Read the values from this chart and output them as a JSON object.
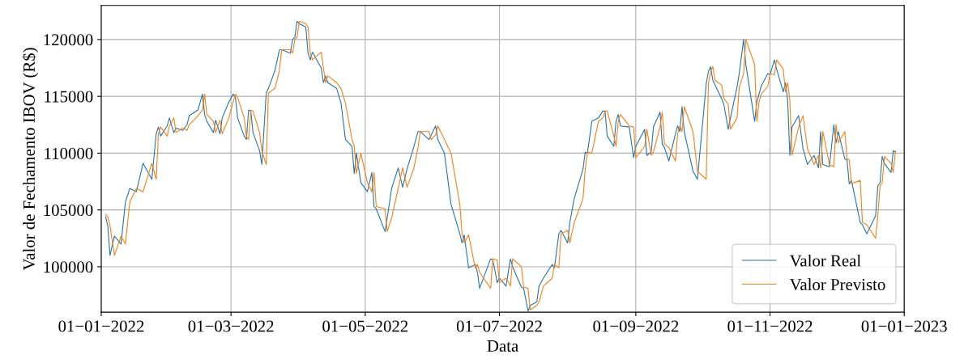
{
  "chart_data": {
    "type": "line",
    "xlabel": "Data",
    "ylabel": "Valor de Fechamento IBOV (R$)",
    "x": [
      "2022-01-03",
      "2022-01-04",
      "2022-01-05",
      "2022-01-07",
      "2022-01-10",
      "2022-01-12",
      "2022-01-14",
      "2022-01-17",
      "2022-01-20",
      "2022-01-24",
      "2022-01-26",
      "2022-01-27",
      "2022-01-28",
      "2022-01-31",
      "2022-02-01",
      "2022-02-03",
      "2022-02-04",
      "2022-02-07",
      "2022-02-09",
      "2022-02-10",
      "2022-02-14",
      "2022-02-16",
      "2022-02-17",
      "2022-02-18",
      "2022-02-21",
      "2022-02-22",
      "2022-02-24",
      "2022-02-25",
      "2022-02-28",
      "2022-03-02",
      "2022-03-03",
      "2022-03-04",
      "2022-03-07",
      "2022-03-08",
      "2022-03-09",
      "2022-03-10",
      "2022-03-11",
      "2022-03-14",
      "2022-03-15",
      "2022-03-17",
      "2022-03-18",
      "2022-03-21",
      "2022-03-23",
      "2022-03-24",
      "2022-03-28",
      "2022-03-29",
      "2022-03-30",
      "2022-03-31",
      "2022-04-01",
      "2022-04-04",
      "2022-04-05",
      "2022-04-06",
      "2022-04-07",
      "2022-04-11",
      "2022-04-12",
      "2022-04-13",
      "2022-04-14",
      "2022-04-18",
      "2022-04-20",
      "2022-04-22",
      "2022-04-25",
      "2022-04-26",
      "2022-04-27",
      "2022-04-29",
      "2022-05-02",
      "2022-05-04",
      "2022-05-05",
      "2022-05-06",
      "2022-05-10",
      "2022-05-11",
      "2022-05-13",
      "2022-05-16",
      "2022-05-18",
      "2022-05-20",
      "2022-05-23",
      "2022-05-25",
      "2022-05-26",
      "2022-05-30",
      "2022-05-31",
      "2022-06-02",
      "2022-06-03",
      "2022-06-06",
      "2022-06-09",
      "2022-06-13",
      "2022-06-14",
      "2022-06-15",
      "2022-06-17",
      "2022-06-20",
      "2022-06-21",
      "2022-06-22",
      "2022-06-27",
      "2022-06-28",
      "2022-06-30",
      "2022-07-01",
      "2022-07-04",
      "2022-07-06",
      "2022-07-07",
      "2022-07-11",
      "2022-07-12",
      "2022-07-14",
      "2022-07-15",
      "2022-07-18",
      "2022-07-19",
      "2022-07-21",
      "2022-07-25",
      "2022-07-26",
      "2022-07-28",
      "2022-07-29",
      "2022-08-01",
      "2022-08-02",
      "2022-08-04",
      "2022-08-08",
      "2022-08-09",
      "2022-08-10",
      "2022-08-12",
      "2022-08-15",
      "2022-08-17",
      "2022-08-18",
      "2022-08-19",
      "2022-08-22",
      "2022-08-23",
      "2022-08-24",
      "2022-08-25",
      "2022-08-29",
      "2022-08-31",
      "2022-09-01",
      "2022-09-05",
      "2022-09-06",
      "2022-09-08",
      "2022-09-09",
      "2022-09-12",
      "2022-09-13",
      "2022-09-14",
      "2022-09-16",
      "2022-09-19",
      "2022-09-20",
      "2022-09-21",
      "2022-09-22",
      "2022-09-23",
      "2022-09-27",
      "2022-09-29",
      "2022-10-03",
      "2022-10-04",
      "2022-10-05",
      "2022-10-06",
      "2022-10-07",
      "2022-10-10",
      "2022-10-11",
      "2022-10-13",
      "2022-10-14",
      "2022-10-17",
      "2022-10-18",
      "2022-10-20",
      "2022-10-21",
      "2022-10-25",
      "2022-10-26",
      "2022-10-27",
      "2022-10-28",
      "2022-10-31",
      "2022-11-01",
      "2022-11-03",
      "2022-11-04",
      "2022-11-07",
      "2022-11-08",
      "2022-11-09",
      "2022-11-10",
      "2022-11-11",
      "2022-11-14",
      "2022-11-16",
      "2022-11-18",
      "2022-11-21",
      "2022-11-23",
      "2022-11-24",
      "2022-11-25",
      "2022-11-28",
      "2022-11-30",
      "2022-12-01",
      "2022-12-02",
      "2022-12-05",
      "2022-12-06",
      "2022-12-07",
      "2022-12-08",
      "2022-12-12",
      "2022-12-13",
      "2022-12-15",
      "2022-12-19",
      "2022-12-20",
      "2022-12-21",
      "2022-12-22",
      "2022-12-23",
      "2022-12-26",
      "2022-12-27",
      "2022-12-28"
    ],
    "series": [
      {
        "name": "Valor Real",
        "color": "#1f77b4",
        "values": [
          104400,
          103600,
          101000,
          102700,
          102000,
          105700,
          106900,
          106600,
          109100,
          107700,
          111700,
          112300,
          111500,
          112400,
          113100,
          111800,
          112200,
          112000,
          112500,
          113300,
          113800,
          115200,
          113400,
          112800,
          111800,
          112900,
          111700,
          113100,
          114500,
          115200,
          114900,
          113100,
          111500,
          111200,
          113800,
          113700,
          111800,
          110200,
          109000,
          115300,
          115700,
          117300,
          119100,
          119100,
          118800,
          120000,
          120200,
          121600,
          121400,
          121100,
          118800,
          118200,
          118900,
          117500,
          116200,
          116800,
          116200,
          115700,
          114400,
          111200,
          110600,
          108200,
          110000,
          107400,
          106600,
          108300,
          105300,
          105100,
          103100,
          104300,
          106900,
          108700,
          107000,
          108600,
          110500,
          111900,
          111900,
          111200,
          111600,
          112400,
          111200,
          110000,
          105500,
          102900,
          102100,
          102800,
          99900,
          100200,
          99500,
          98100,
          100700,
          100600,
          98600,
          99000,
          98300,
          100700,
          100000,
          98200,
          98100,
          96100,
          96600,
          96900,
          98300,
          99000,
          100200,
          99900,
          102900,
          103200,
          102100,
          103900,
          106000,
          108600,
          110100,
          110000,
          112800,
          113100,
          113700,
          113700,
          111500,
          110600,
          112800,
          113400,
          112400,
          112300,
          109600,
          110600,
          112100,
          109800,
          110100,
          112300,
          113600,
          110800,
          110500,
          109300,
          111700,
          112400,
          111900,
          114100,
          111900,
          108400,
          107700,
          116100,
          117200,
          117600,
          116400,
          116000,
          114800,
          114300,
          112100,
          113100,
          115800,
          117000,
          120000,
          117800,
          112800,
          114500,
          115200,
          115900,
          117000,
          116900,
          118200,
          117400,
          115400,
          116200,
          114700,
          109800,
          112300,
          113300,
          110400,
          109000,
          109800,
          108700,
          111900,
          109000,
          108800,
          112500,
          110900,
          111900,
          109500,
          109400,
          107300,
          107600,
          103900,
          103700,
          102900,
          104500,
          107100,
          107400,
          109700,
          109100,
          108300,
          110200,
          110100
        ]
      },
      {
        "name": "Valor Previsto",
        "color": "#ff7f0e",
        "values": [
          104600,
          104400,
          103600,
          101000,
          102700,
          102000,
          105700,
          106900,
          106600,
          109100,
          107700,
          111700,
          112300,
          111500,
          112400,
          113100,
          111800,
          112200,
          112000,
          112500,
          113300,
          113800,
          115200,
          113400,
          112800,
          111800,
          112900,
          111700,
          113100,
          114500,
          115200,
          114900,
          113100,
          111500,
          111200,
          113800,
          113700,
          111800,
          110200,
          109000,
          115300,
          115700,
          117300,
          119100,
          119100,
          118800,
          120000,
          120200,
          121600,
          121400,
          121100,
          118800,
          118200,
          118900,
          117500,
          116200,
          116800,
          116200,
          115700,
          114400,
          111200,
          110600,
          108200,
          110000,
          107400,
          106600,
          108300,
          105300,
          105100,
          103100,
          104300,
          106900,
          108700,
          107000,
          108600,
          110500,
          111900,
          111900,
          111200,
          111600,
          112400,
          111200,
          110000,
          105500,
          102900,
          102100,
          102800,
          99900,
          100200,
          99500,
          98100,
          100700,
          100600,
          98600,
          99000,
          98300,
          100700,
          100000,
          98200,
          98100,
          96200,
          96600,
          96900,
          98300,
          99000,
          100200,
          99900,
          102900,
          103200,
          102100,
          103900,
          106000,
          108600,
          110100,
          110000,
          112800,
          113100,
          113700,
          113700,
          111500,
          110600,
          112800,
          113400,
          112400,
          112300,
          109600,
          110600,
          112100,
          109800,
          110100,
          112300,
          113600,
          110800,
          110500,
          109300,
          111700,
          112400,
          111900,
          114100,
          111900,
          108400,
          107700,
          116100,
          117200,
          117600,
          116400,
          116000,
          114800,
          114300,
          112100,
          113100,
          115800,
          117000,
          120000,
          117800,
          112800,
          114500,
          115200,
          115900,
          117000,
          116900,
          118200,
          117400,
          115400,
          116200,
          114700,
          109800,
          112300,
          113300,
          110400,
          109000,
          109800,
          108700,
          111900,
          109000,
          108800,
          112500,
          110900,
          111900,
          109500,
          109400,
          107300,
          107600,
          103900,
          103700,
          102500,
          104500,
          107100,
          107400,
          109700,
          109100,
          108300,
          110200
        ]
      }
    ],
    "xlim": [
      "2022-01-01",
      "2023-01-01"
    ],
    "xticks": [
      {
        "value": "2022-01-01",
        "label": "01−01−2022"
      },
      {
        "value": "2022-03-01",
        "label": "01−03−2022"
      },
      {
        "value": "2022-05-01",
        "label": "01−05−2022"
      },
      {
        "value": "2022-07-01",
        "label": "01−07−2022"
      },
      {
        "value": "2022-09-01",
        "label": "01−09−2022"
      },
      {
        "value": "2022-11-01",
        "label": "01−11−2022"
      },
      {
        "value": "2023-01-01",
        "label": "01−01−2023"
      }
    ],
    "ylim": [
      96000,
      123000
    ],
    "yticks": [
      100000,
      105000,
      110000,
      115000,
      120000
    ],
    "grid": true,
    "legend": "lower right",
    "line_style": "solid",
    "marker": "none"
  }
}
